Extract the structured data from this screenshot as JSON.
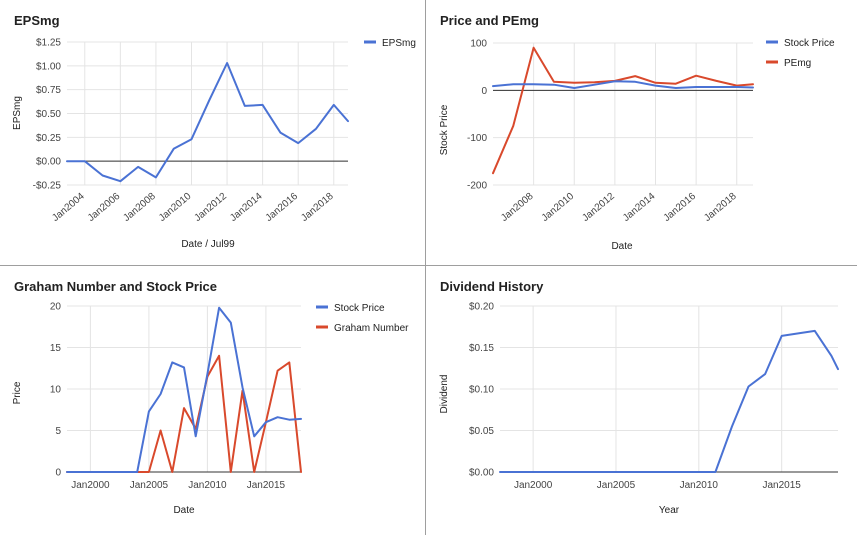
{
  "colors": {
    "blue": "#4a72d4",
    "red": "#d9492c"
  },
  "chart_data": [
    {
      "type": "line",
      "title": "EPSmg",
      "xlabel": "Date / Jul99",
      "ylabel": "EPSmg",
      "xlim": [
        2003,
        2018.8
      ],
      "ylim": [
        -0.25,
        1.25
      ],
      "yticks": [
        1.25,
        1.0,
        0.75,
        0.5,
        0.25,
        0.0,
        -0.25
      ],
      "ytick_labels": [
        "$1.25",
        "$1.00",
        "$0.75",
        "$0.50",
        "$0.25",
        "$0.00",
        "-$0.25"
      ],
      "xticks": [
        2004,
        2006,
        2008,
        2010,
        2012,
        2014,
        2016,
        2018
      ],
      "xtick_labels": [
        "Jan2004",
        "Jan2006",
        "Jan2008",
        "Jan2010",
        "Jan2012",
        "Jan2014",
        "Jan2016",
        "Jan2018"
      ],
      "xtick_rotated": true,
      "legend": [
        "EPSmg"
      ],
      "legend_position": "right",
      "x": [
        2003,
        2004,
        2005,
        2006,
        2007,
        2008,
        2009,
        2010,
        2011,
        2012,
        2013,
        2014,
        2015,
        2016,
        2017,
        2018,
        2018.8
      ],
      "series": [
        {
          "name": "EPSmg",
          "color": "blue",
          "values": [
            0.0,
            0.0,
            -0.15,
            -0.21,
            -0.06,
            -0.17,
            0.13,
            0.23,
            0.64,
            1.03,
            0.58,
            0.59,
            0.3,
            0.19,
            0.34,
            0.59,
            0.42
          ]
        }
      ]
    },
    {
      "type": "line",
      "title": "Price and PEmg",
      "xlabel": "Date",
      "ylabel": "Stock Price",
      "xlim": [
        2006,
        2018.8
      ],
      "ylim": [
        -200,
        100
      ],
      "yticks": [
        100,
        0,
        -100,
        -200
      ],
      "ytick_labels": [
        "100",
        "0",
        "-100",
        "-200"
      ],
      "xticks": [
        2008,
        2010,
        2012,
        2014,
        2016,
        2018
      ],
      "xtick_labels": [
        "Jan2008",
        "Jan2010",
        "Jan2012",
        "Jan2014",
        "Jan2016",
        "Jan2018"
      ],
      "xtick_rotated": true,
      "legend": [
        "Stock Price",
        "PEmg"
      ],
      "legend_position": "right",
      "x": [
        2006,
        2007,
        2008,
        2009,
        2010,
        2011,
        2012,
        2013,
        2014,
        2015,
        2016,
        2017,
        2018,
        2018.8
      ],
      "series": [
        {
          "name": "Stock Price",
          "color": "blue",
          "values": [
            9,
            13,
            13,
            12,
            5,
            12,
            19,
            18,
            10,
            5,
            7,
            7,
            7,
            6
          ]
        },
        {
          "name": "PEmg",
          "color": "red",
          "values": [
            -175,
            -75,
            90,
            18,
            16,
            17,
            20,
            30,
            16,
            14,
            31,
            20,
            10,
            13
          ]
        }
      ]
    },
    {
      "type": "line",
      "title": "Graham Number and Stock Price",
      "xlabel": "Date",
      "ylabel": "Price",
      "xlim": [
        1998,
        2018
      ],
      "ylim": [
        0,
        20
      ],
      "yticks": [
        20,
        15,
        10,
        5,
        0
      ],
      "ytick_labels": [
        "20",
        "15",
        "10",
        "5",
        "0"
      ],
      "xticks": [
        2000,
        2005,
        2010,
        2015
      ],
      "xtick_labels": [
        "Jan2000",
        "Jan2005",
        "Jan2010",
        "Jan2015"
      ],
      "xtick_rotated": false,
      "legend": [
        "Stock Price",
        "Graham Number"
      ],
      "legend_position": "right",
      "x": [
        1998,
        1999,
        2000,
        2001,
        2002,
        2003,
        2004,
        2005,
        2006,
        2007,
        2008,
        2009,
        2010,
        2011,
        2012,
        2013,
        2014,
        2015,
        2016,
        2017,
        2018
      ],
      "series": [
        {
          "name": "Stock Price",
          "color": "blue",
          "values": [
            0,
            0,
            0,
            0,
            0,
            0,
            0,
            7.3,
            9.4,
            13.2,
            12.6,
            4.3,
            11.8,
            19.8,
            18.0,
            10.2,
            4.3,
            6.0,
            6.6,
            6.3,
            6.4
          ]
        },
        {
          "name": "Graham Number",
          "color": "red",
          "values": [
            0,
            0,
            0,
            0,
            0,
            0,
            0,
            0,
            5.0,
            0,
            7.7,
            5.2,
            11.5,
            14.0,
            0,
            9.8,
            0,
            6.0,
            12.2,
            13.2,
            0
          ]
        }
      ]
    },
    {
      "type": "line",
      "title": "Dividend History",
      "xlabel": "Year",
      "ylabel": "Dividend",
      "xlim": [
        1998,
        2018.4
      ],
      "ylim": [
        0,
        0.2
      ],
      "yticks": [
        0.2,
        0.15,
        0.1,
        0.05,
        0.0
      ],
      "ytick_labels": [
        "$0.20",
        "$0.15",
        "$0.10",
        "$0.05",
        "$0.00"
      ],
      "xticks": [
        2000,
        2005,
        2010,
        2015
      ],
      "xtick_labels": [
        "Jan2000",
        "Jan2005",
        "Jan2010",
        "Jan2015"
      ],
      "xtick_rotated": false,
      "legend": [],
      "x": [
        1998,
        2000,
        2005,
        2010,
        2011,
        2012,
        2013,
        2014,
        2015,
        2016,
        2017,
        2018,
        2018.4
      ],
      "series": [
        {
          "name": "Dividend",
          "color": "blue",
          "values": [
            0,
            0,
            0,
            0,
            0,
            0.055,
            0.103,
            0.118,
            0.164,
            0.167,
            0.17,
            0.14,
            0.124
          ]
        }
      ]
    }
  ]
}
